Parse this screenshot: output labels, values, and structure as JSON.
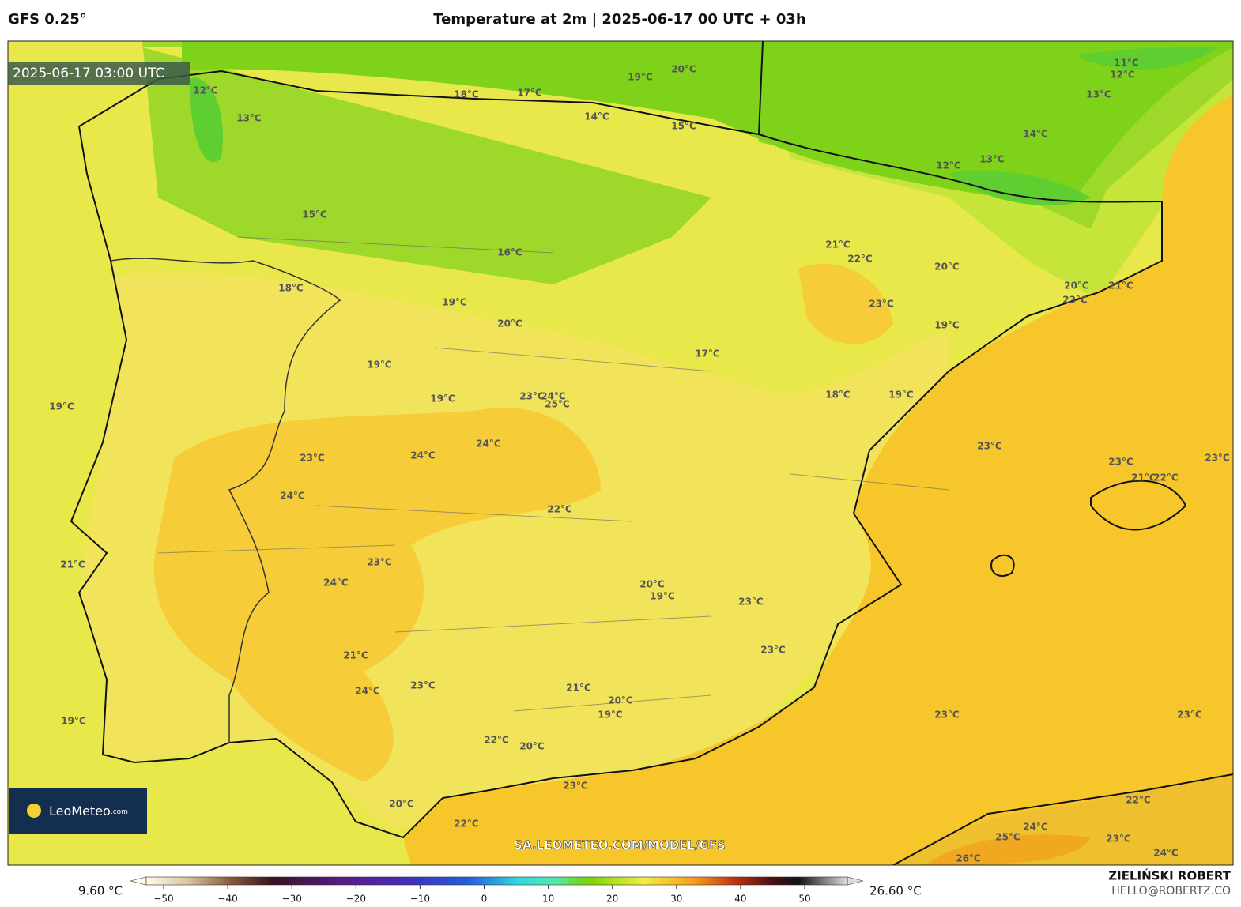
{
  "header": {
    "model": "GFS 0.25°",
    "title": "Temperature at 2m | 2025-06-17 00 UTC + 03h"
  },
  "timestamp": "2025-06-17 03:00 UTC",
  "logo": {
    "name": "LeoMeteo",
    "suffix": ".com"
  },
  "url": "SA.LEOMETEO.COM/MODEL/GFS",
  "credits": {
    "author": "ZIELIŃSKI ROBERT",
    "email": "HELLO@ROBERTZ.CO"
  },
  "colorbar": {
    "min_label": "9.60 °C",
    "max_label": "26.60 °C",
    "ticks": [
      {
        "value": -50,
        "label": "−50"
      },
      {
        "value": -40,
        "label": "−40"
      },
      {
        "value": -30,
        "label": "−30"
      },
      {
        "value": -20,
        "label": "−20"
      },
      {
        "value": -10,
        "label": "−10"
      },
      0,
      10,
      20,
      30,
      40,
      50
    ]
  },
  "labels": [
    "12°C",
    "13°C",
    "18°C",
    "17°C",
    "19°C",
    "20°C",
    "14°C",
    "15°C",
    "11°C",
    "12°C",
    "13°C",
    "14°C",
    "12°C",
    "13°C",
    "15°C",
    "16°C",
    "18°C",
    "19°C",
    "20°C",
    "21°C",
    "22°C",
    "23°C",
    "20°C",
    "20°C",
    "21°C",
    "23°C",
    "19°C",
    "17°C",
    "19°C",
    "19°C",
    "18°C",
    "19°C",
    "19°C",
    "23°C",
    "24°C",
    "25°C",
    "24°C",
    "24°C",
    "23°C",
    "24°C",
    "22°C",
    "23°C",
    "23°C",
    "21°C",
    "22°C",
    "23°C",
    "21°C",
    "23°C",
    "24°C",
    "20°C",
    "19°C",
    "23°C",
    "23°C",
    "21°C",
    "24°C",
    "23°C",
    "21°C",
    "20°C",
    "19°C",
    "19°C",
    "23°C",
    "23°C",
    "22°C",
    "20°C",
    "23°C",
    "20°C",
    "22°C",
    "22°C",
    "24°C",
    "25°C",
    "23°C",
    "24°C",
    "26°C"
  ]
}
